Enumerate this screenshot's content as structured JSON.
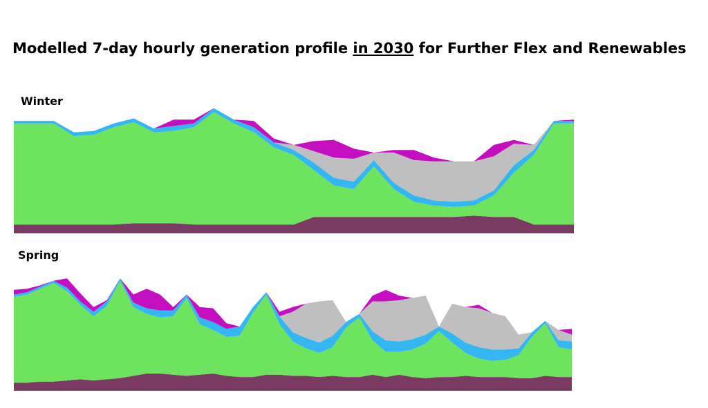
{
  "title": {
    "prefix": "Modelled 7-day hourly generation profile ",
    "highlight": "in 2030",
    "suffix": " for Further Flex and Renewables"
  },
  "colors": {
    "base": "#7a3b63",
    "green": "#6ee45e",
    "blue": "#33b6f2",
    "grey": "#bfbfbf",
    "magenta": "#c40fc0"
  },
  "chart_data": [
    {
      "type": "area",
      "label": "Winter",
      "stacked": true,
      "x": [
        0,
        6,
        12,
        18,
        24,
        30,
        36,
        42,
        48,
        54,
        60,
        66,
        72,
        78,
        84,
        90,
        96,
        102,
        108,
        114,
        120,
        126,
        132,
        138,
        144,
        150,
        156,
        162,
        168
      ],
      "ylim": [
        0,
        100
      ],
      "series": [
        {
          "color_key": "base",
          "values": [
            7,
            7,
            7,
            7,
            7,
            7,
            8,
            8,
            8,
            7,
            7,
            7,
            7,
            7,
            7,
            13,
            13,
            13,
            13,
            13,
            13,
            13,
            13,
            14,
            13,
            13,
            7,
            7,
            7
          ]
        },
        {
          "color_key": "green",
          "values": [
            80,
            80,
            80,
            70,
            71,
            77,
            80,
            72,
            73,
            77,
            89,
            80,
            73,
            61,
            55,
            37,
            25,
            22,
            40,
            22,
            12,
            9,
            8,
            8,
            17,
            35,
            55,
            80,
            80
          ]
        },
        {
          "color_key": "blue",
          "values": [
            2,
            2,
            2,
            3,
            3,
            3,
            3,
            3,
            4,
            3,
            3,
            3,
            4,
            4,
            4,
            6,
            6,
            6,
            5,
            5,
            5,
            4,
            4,
            4,
            4,
            6,
            4,
            2,
            2
          ]
        },
        {
          "color_key": "grey",
          "values": [
            0,
            0,
            0,
            0,
            0,
            0,
            0,
            0,
            0,
            0,
            0,
            0,
            0,
            0,
            4,
            9,
            16,
            18,
            6,
            24,
            28,
            31,
            32,
            31,
            27,
            17,
            4,
            0,
            0
          ]
        },
        {
          "color_key": "magenta",
          "values": [
            0,
            0,
            0,
            0,
            0,
            0,
            0,
            0,
            5,
            3,
            0,
            0,
            5,
            3,
            0,
            8,
            14,
            8,
            0,
            2,
            8,
            3,
            0,
            0,
            9,
            3,
            0,
            0,
            1
          ]
        }
      ]
    },
    {
      "type": "area",
      "label": "Spring",
      "stacked": true,
      "x": [
        0,
        4,
        8,
        12,
        16,
        20,
        24,
        28,
        32,
        36,
        40,
        44,
        48,
        52,
        56,
        60,
        64,
        68,
        72,
        76,
        80,
        84,
        88,
        92,
        96,
        100,
        104,
        108,
        112,
        116,
        120,
        124,
        128,
        132,
        136,
        140,
        144,
        148,
        152,
        156,
        160,
        164,
        168
      ],
      "ylim": [
        0,
        100
      ],
      "series": [
        {
          "color_key": "base",
          "values": [
            7,
            7,
            8,
            8,
            9,
            10,
            9,
            10,
            11,
            13,
            15,
            15,
            14,
            13,
            14,
            15,
            13,
            12,
            12,
            14,
            14,
            13,
            13,
            12,
            13,
            12,
            12,
            14,
            12,
            14,
            12,
            11,
            12,
            12,
            13,
            12,
            12,
            12,
            11,
            11,
            13,
            12,
            12
          ]
        },
        {
          "color_key": "green",
          "values": [
            75,
            77,
            81,
            86,
            78,
            65,
            56,
            64,
            85,
            60,
            52,
            49,
            51,
            68,
            44,
            38,
            34,
            36,
            56,
            70,
            44,
            30,
            24,
            21,
            25,
            43,
            52,
            30,
            22,
            20,
            24,
            30,
            40,
            30,
            20,
            16,
            14,
            15,
            20,
            36,
            46,
            26,
            24
          ]
        },
        {
          "color_key": "blue",
          "values": [
            2,
            2,
            2,
            2,
            3,
            3,
            4,
            4,
            2,
            4,
            5,
            6,
            5,
            3,
            6,
            7,
            7,
            8,
            5,
            2,
            7,
            8,
            9,
            9,
            10,
            5,
            3,
            8,
            10,
            9,
            9,
            8,
            4,
            8,
            9,
            10,
            10,
            9,
            6,
            4,
            2,
            6,
            7
          ]
        },
        {
          "color_key": "grey",
          "values": [
            0,
            0,
            0,
            0,
            0,
            0,
            0,
            0,
            0,
            0,
            0,
            0,
            0,
            0,
            0,
            0,
            0,
            0,
            0,
            0,
            0,
            18,
            30,
            36,
            31,
            0,
            0,
            26,
            34,
            36,
            36,
            34,
            0,
            26,
            31,
            34,
            32,
            29,
            12,
            0,
            0,
            9,
            6
          ]
        },
        {
          "color_key": "magenta",
          "values": [
            4,
            3,
            1,
            0,
            8,
            7,
            4,
            1,
            0,
            7,
            17,
            14,
            3,
            0,
            9,
            12,
            5,
            0,
            0,
            0,
            4,
            4,
            0,
            0,
            0,
            0,
            0,
            5,
            10,
            4,
            0,
            0,
            0,
            0,
            0,
            3,
            0,
            0,
            0,
            0,
            0,
            0,
            5
          ]
        }
      ]
    }
  ]
}
